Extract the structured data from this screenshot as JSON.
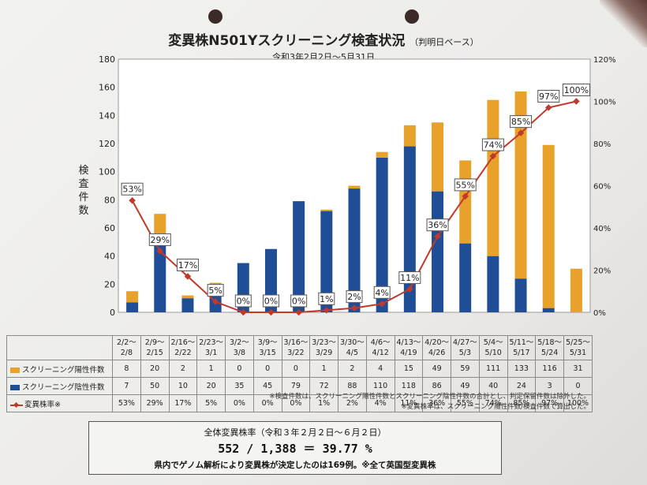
{
  "header": {
    "title": "変異株N501Yスクリーニング検査状況",
    "title_suffix": "（判明日ベース）",
    "subtitle": "令和3年2月2日～5月31日"
  },
  "chart_data": {
    "type": "bar",
    "stacked": true,
    "y_left_label": "検査件数",
    "y_left_ticks": [
      "0",
      "20",
      "40",
      "60",
      "80",
      "100",
      "120",
      "140",
      "160",
      "180"
    ],
    "y_right_ticks": [
      "0%",
      "20%",
      "40%",
      "60%",
      "80%",
      "100%",
      "120%"
    ],
    "ylim_left": [
      0,
      180
    ],
    "ylim_right": [
      0,
      120
    ],
    "categories": [
      [
        "2/2～",
        "2/8"
      ],
      [
        "2/9～",
        "2/15"
      ],
      [
        "2/16～",
        "2/22"
      ],
      [
        "2/23～",
        "3/1"
      ],
      [
        "3/2～",
        "3/8"
      ],
      [
        "3/9～",
        "3/15"
      ],
      [
        "3/16～",
        "3/22"
      ],
      [
        "3/23～",
        "3/29"
      ],
      [
        "3/30～",
        "4/5"
      ],
      [
        "4/6～",
        "4/12"
      ],
      [
        "4/13～",
        "4/19"
      ],
      [
        "4/20～",
        "4/26"
      ],
      [
        "4/27～",
        "5/3"
      ],
      [
        "5/4～",
        "5/10"
      ],
      [
        "5/11～",
        "5/17"
      ],
      [
        "5/18～",
        "5/24"
      ],
      [
        "5/25～",
        "5/31"
      ]
    ],
    "series": [
      {
        "name": "スクリーニング陽性件数",
        "color": "#e8a22b",
        "values": [
          "8",
          "20",
          "2",
          "1",
          "0",
          "0",
          "0",
          "1",
          "2",
          "4",
          "15",
          "49",
          "59",
          "111",
          "133",
          "116",
          "31"
        ]
      },
      {
        "name": "スクリーニング陰性件数",
        "color": "#1f4e96",
        "values": [
          "7",
          "50",
          "10",
          "20",
          "35",
          "45",
          "79",
          "72",
          "88",
          "110",
          "118",
          "86",
          "49",
          "40",
          "24",
          "3",
          "0"
        ]
      },
      {
        "name": "変異株率※",
        "color": "#c0392b",
        "values": [
          "53%",
          "29%",
          "17%",
          "5%",
          "0%",
          "0%",
          "0%",
          "1%",
          "2%",
          "4%",
          "11%",
          "36%",
          "55%",
          "74%",
          "85%",
          "97%",
          "100%"
        ]
      }
    ],
    "line_labels": [
      "53%",
      "29%",
      "17%",
      "5%",
      "0%",
      "0%",
      "0%",
      "1%",
      "2%",
      "4%",
      "11%",
      "36%",
      "55%",
      "74%",
      "85%",
      "97%",
      "100%"
    ]
  },
  "notes": [
    "※検査件数は、スクリーニング陽性件数とスクリーニング陰性件数の合計とし、判定保留件数は除外した。",
    "※変異株率は、スクリーニング陽性件数/検査件数で算出した。"
  ],
  "summary": {
    "line1": "全体変異株率（令和３年２月２日～６月２日）",
    "line2": "552 / 1,388 ＝ 39.77 %",
    "line3": "県内でゲノム解析により変異株が決定したのは169例。※全て英国型変異株"
  }
}
